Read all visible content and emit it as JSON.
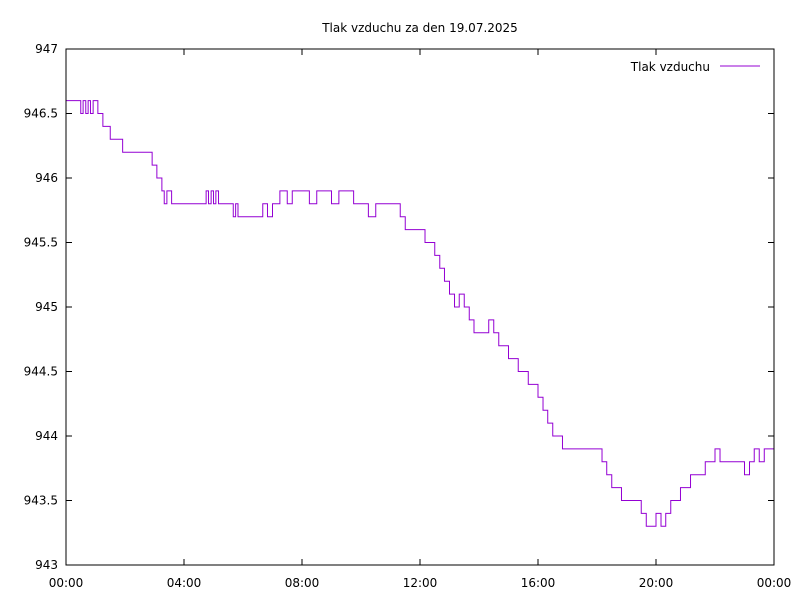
{
  "chart_data": {
    "type": "line",
    "title": "Tlak vzduchu za den 19.07.2025",
    "xlabel": "",
    "ylabel": "",
    "xlim": [
      0,
      24
    ],
    "ylim": [
      943,
      947
    ],
    "grid": false,
    "legend_position": "top-right",
    "x_tick_values": [
      0,
      4,
      8,
      12,
      16,
      20,
      24
    ],
    "x_tick_labels": [
      "00:00",
      "04:00",
      "08:00",
      "12:00",
      "16:00",
      "20:00",
      "00:00"
    ],
    "y_tick_values": [
      943,
      943.5,
      944,
      944.5,
      945,
      945.5,
      946,
      946.5,
      947
    ],
    "y_tick_labels": [
      "943",
      "943.5",
      "944",
      "944.5",
      "945",
      "945.5",
      "946",
      "946.5",
      "947"
    ],
    "series": [
      {
        "name": "Tlak vzduchu",
        "color": "#9400D3",
        "x": [
          0.0,
          0.42,
          0.5,
          0.58,
          0.67,
          0.75,
          0.83,
          0.92,
          1.0,
          1.08,
          1.17,
          1.25,
          1.42,
          1.5,
          1.58,
          1.75,
          1.92,
          2.0,
          2.17,
          2.33,
          2.5,
          2.75,
          2.92,
          3.0,
          3.08,
          3.17,
          3.25,
          3.33,
          3.42,
          3.5,
          3.58,
          3.75,
          4.0,
          4.5,
          4.75,
          4.83,
          4.92,
          5.0,
          5.08,
          5.17,
          5.33,
          5.5,
          5.67,
          5.75,
          5.83,
          6.0,
          6.25,
          6.5,
          6.67,
          6.83,
          7.0,
          7.25,
          7.5,
          7.67,
          7.83,
          8.0,
          8.25,
          8.5,
          8.75,
          9.0,
          9.25,
          9.5,
          9.75,
          10.0,
          10.25,
          10.5,
          10.75,
          11.0,
          11.17,
          11.33,
          11.5,
          11.75,
          12.0,
          12.17,
          12.33,
          12.5,
          12.67,
          12.83,
          13.0,
          13.17,
          13.33,
          13.5,
          13.67,
          13.83,
          14.0,
          14.17,
          14.33,
          14.5,
          14.67,
          14.83,
          15.0,
          15.17,
          15.33,
          15.5,
          15.67,
          15.83,
          16.0,
          16.17,
          16.33,
          16.5,
          16.67,
          16.83,
          17.0,
          17.5,
          18.0,
          18.17,
          18.33,
          18.5,
          18.67,
          18.83,
          19.0,
          19.25,
          19.5,
          19.67,
          19.83,
          20.0,
          20.17,
          20.33,
          20.5,
          20.67,
          20.83,
          21.0,
          21.17,
          21.33,
          21.5,
          21.67,
          21.83,
          22.0,
          22.17,
          22.33,
          22.5,
          22.67,
          22.83,
          23.0,
          23.17,
          23.33,
          23.5,
          23.67,
          23.83,
          24.0
        ],
        "y": [
          946.6,
          946.6,
          946.5,
          946.6,
          946.5,
          946.6,
          946.5,
          946.6,
          946.6,
          946.5,
          946.5,
          946.4,
          946.4,
          946.3,
          946.3,
          946.3,
          946.2,
          946.2,
          946.2,
          946.2,
          946.2,
          946.2,
          946.1,
          946.1,
          946.0,
          946.0,
          945.9,
          945.8,
          945.9,
          945.9,
          945.8,
          945.8,
          945.8,
          945.8,
          945.9,
          945.8,
          945.9,
          945.8,
          945.9,
          945.8,
          945.8,
          945.8,
          945.7,
          945.8,
          945.7,
          945.7,
          945.7,
          945.7,
          945.8,
          945.7,
          945.8,
          945.9,
          945.8,
          945.9,
          945.9,
          945.9,
          945.8,
          945.9,
          945.9,
          945.8,
          945.9,
          945.9,
          945.8,
          945.8,
          945.7,
          945.8,
          945.8,
          945.8,
          945.8,
          945.7,
          945.6,
          945.6,
          945.6,
          945.5,
          945.5,
          945.4,
          945.3,
          945.2,
          945.1,
          945.0,
          945.1,
          945.0,
          944.9,
          944.8,
          944.8,
          944.8,
          944.9,
          944.8,
          944.7,
          944.7,
          944.6,
          944.6,
          944.5,
          944.5,
          944.4,
          944.4,
          944.3,
          944.2,
          944.1,
          944.0,
          944.0,
          943.9,
          943.9,
          943.9,
          943.9,
          943.8,
          943.7,
          943.6,
          943.6,
          943.5,
          943.5,
          943.5,
          943.4,
          943.3,
          943.3,
          943.4,
          943.3,
          943.4,
          943.5,
          943.5,
          943.6,
          943.6,
          943.7,
          943.7,
          943.7,
          943.8,
          943.8,
          943.9,
          943.8,
          943.8,
          943.8,
          943.8,
          943.8,
          943.7,
          943.8,
          943.9,
          943.8,
          943.9,
          943.9,
          943.9
        ]
      }
    ]
  }
}
